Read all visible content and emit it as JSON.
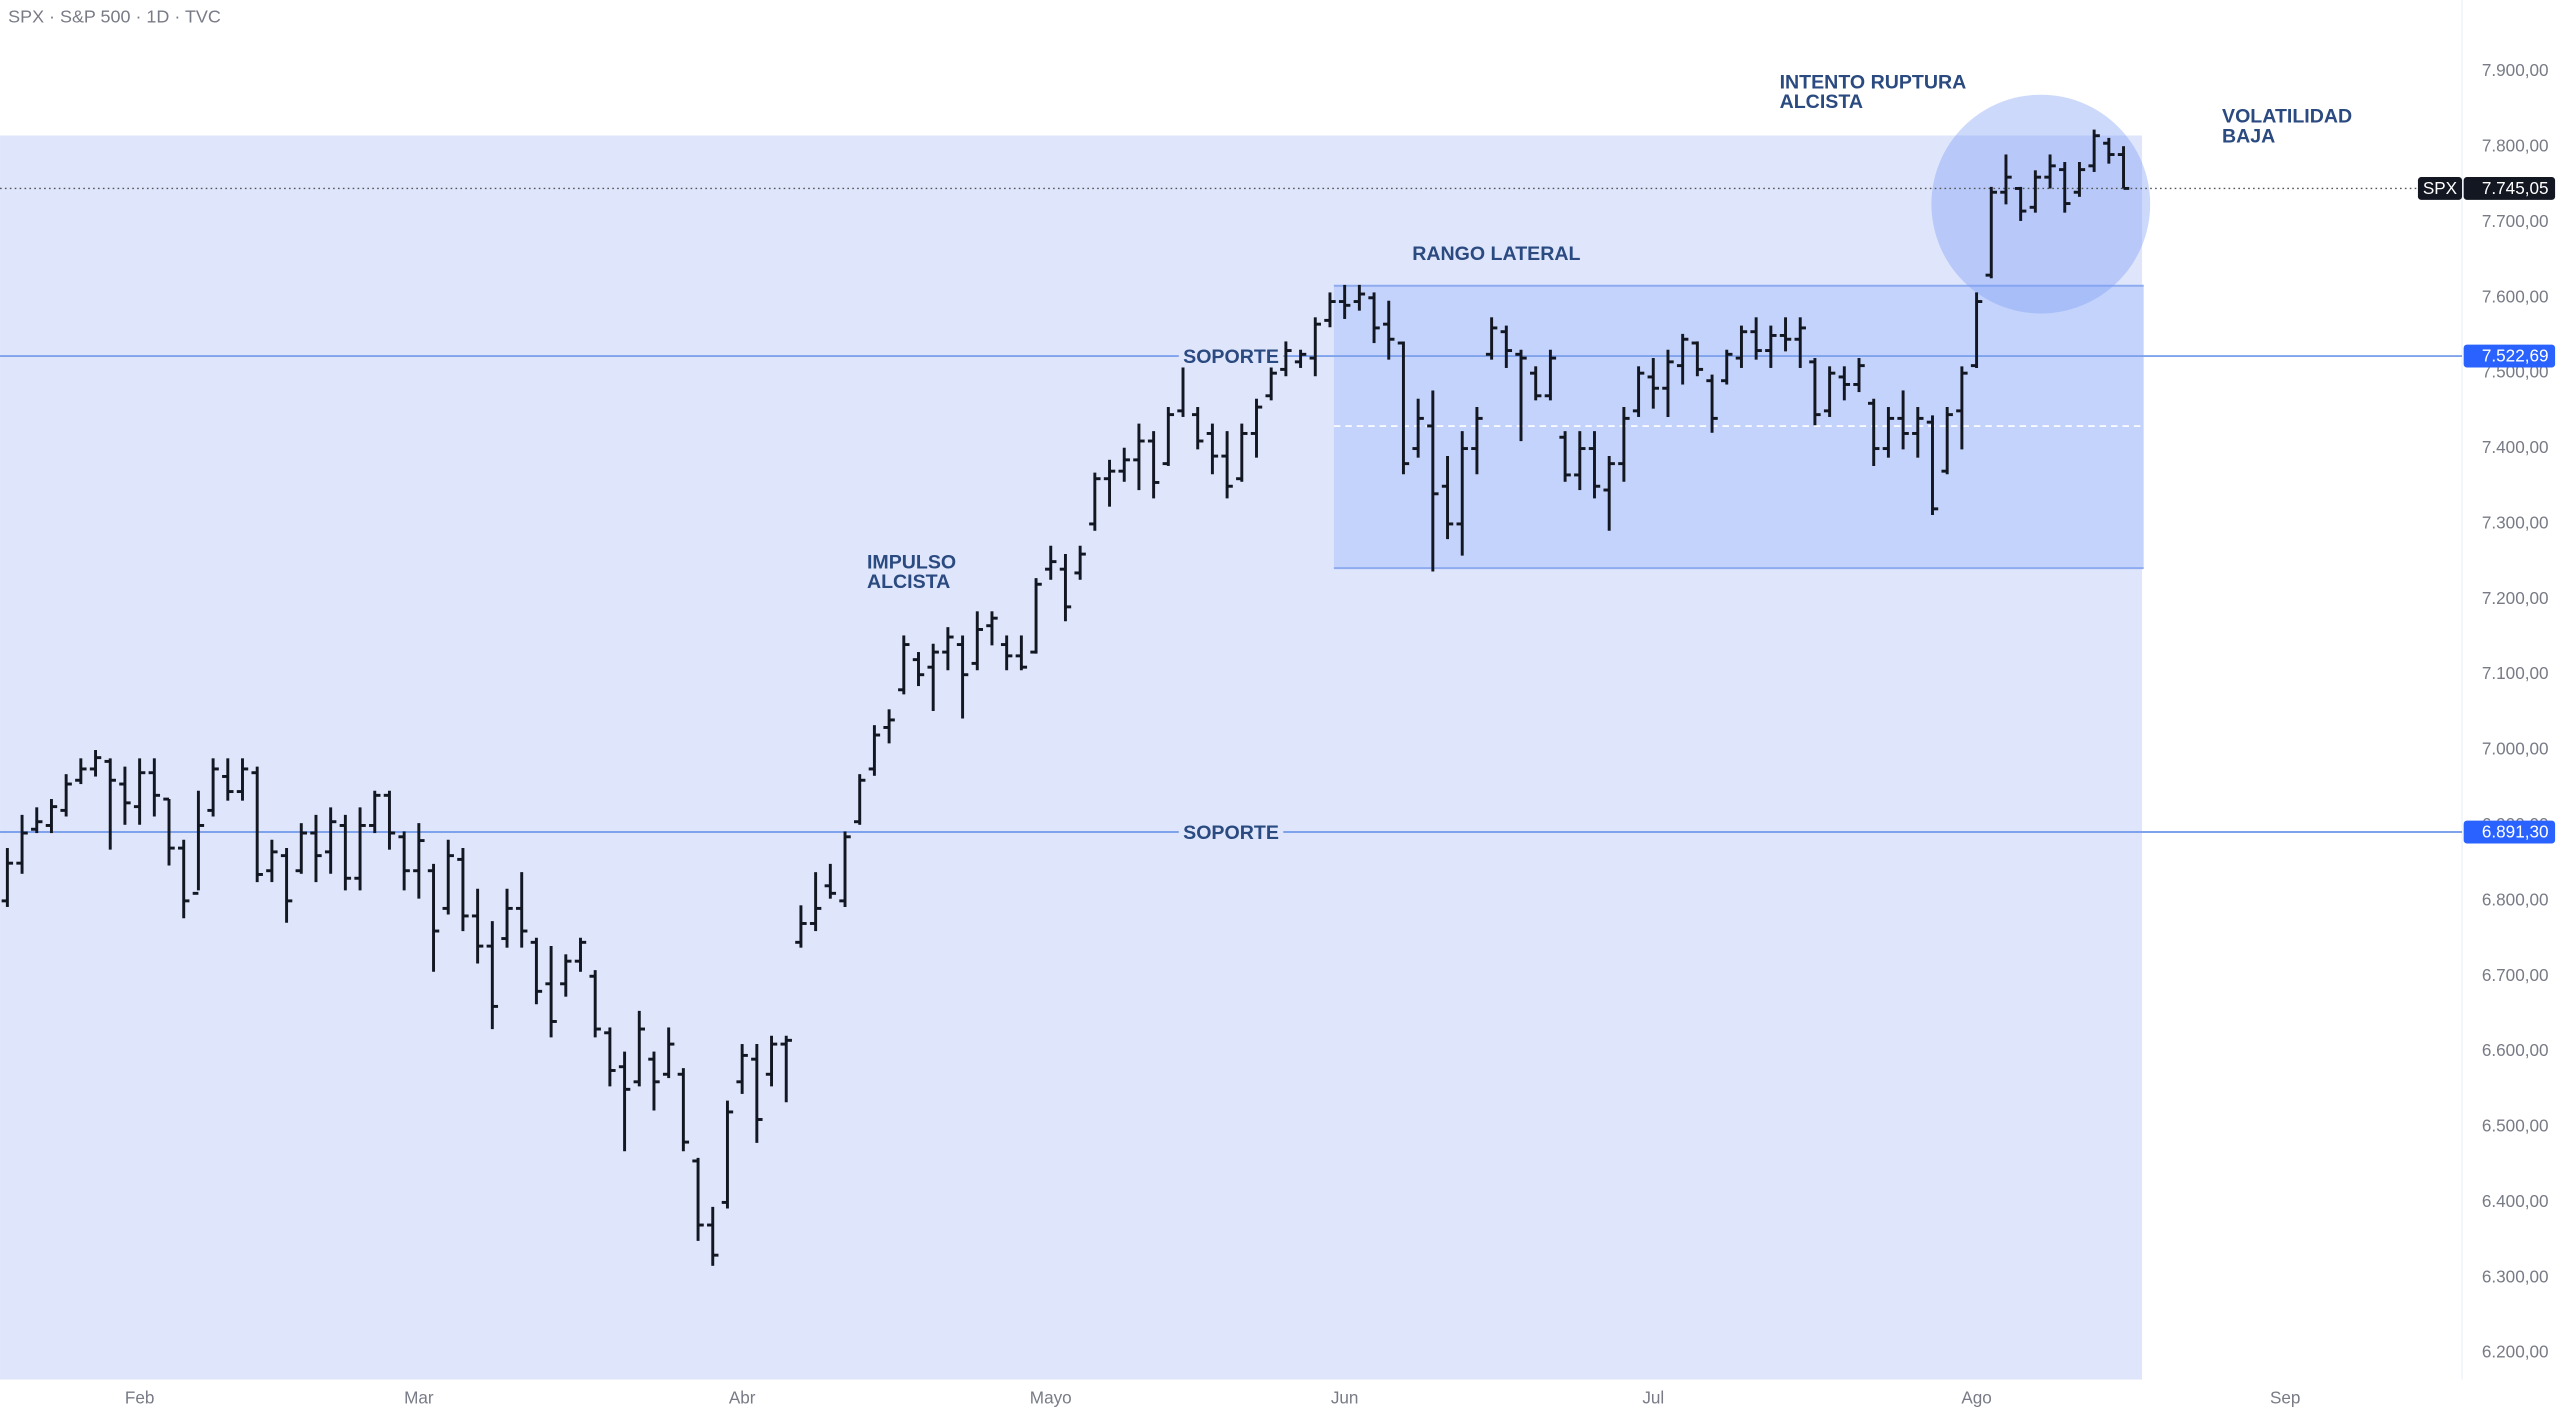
{
  "chart_data": {
    "type": "ohlc",
    "title": "SPX · S&P 500 · 1D · TVC",
    "symbol": "SPX",
    "bar_color": "#131722",
    "line_color": "#7fa2ec",
    "tag_color": "#2962ff",
    "xlim": [
      -0.5,
      166.7
    ],
    "xticks": [
      {
        "value": 9,
        "label": "Feb"
      },
      {
        "value": 28,
        "label": "Mar"
      },
      {
        "value": 50,
        "label": "Abr"
      },
      {
        "value": 71,
        "label": "Mayo"
      },
      {
        "value": 91,
        "label": "Jun"
      },
      {
        "value": 112,
        "label": "Jul"
      },
      {
        "value": 134,
        "label": "Ago"
      },
      {
        "value": 155,
        "label": "Sep"
      }
    ],
    "ylim": [
      6165,
      7995
    ],
    "yticks": [
      {
        "value": 6200,
        "label": "6.200,00"
      },
      {
        "value": 6300,
        "label": "6.300,00"
      },
      {
        "value": 6400,
        "label": "6.400,00"
      },
      {
        "value": 6500,
        "label": "6.500,00"
      },
      {
        "value": 6600,
        "label": "6.600,00"
      },
      {
        "value": 6700,
        "label": "6.700,00"
      },
      {
        "value": 6800,
        "label": "6.800,00"
      },
      {
        "value": 6900,
        "label": "6.900,00"
      },
      {
        "value": 7000,
        "label": "7.000,00"
      },
      {
        "value": 7100,
        "label": "7.100,00"
      },
      {
        "value": 7200,
        "label": "7.200,00"
      },
      {
        "value": 7300,
        "label": "7.300,00"
      },
      {
        "value": 7400,
        "label": "7.400,00"
      },
      {
        "value": 7500,
        "label": "7.500,00"
      },
      {
        "value": 7600,
        "label": "7.600,00"
      },
      {
        "value": 7700,
        "label": "7.700,00"
      },
      {
        "value": 7800,
        "label": "7.800,00"
      },
      {
        "value": 7900,
        "label": "7.900,00"
      }
    ],
    "open": [
      6800,
      6850,
      6895,
      6900,
      6920,
      6960,
      6975,
      6985,
      6955,
      6925,
      6970,
      6935,
      6870,
      6810,
      6920,
      6965,
      6945,
      6970,
      6840,
      6860,
      6840,
      6890,
      6865,
      6900,
      6830,
      6900,
      6940,
      6885,
      6840,
      6840,
      6790,
      6855,
      6780,
      6740,
      6750,
      6790,
      6745,
      6690,
      6690,
      6720,
      6700,
      6625,
      6580,
      6560,
      6590,
      6570,
      6570,
      6455,
      6370,
      6400,
      6560,
      6590,
      6570,
      6610,
      6745,
      6770,
      6820,
      6800,
      6905,
      6975,
      7030,
      7080,
      7120,
      7110,
      7130,
      7140,
      7115,
      7165,
      7140,
      7125,
      7130,
      7240,
      7240,
      7235,
      7300,
      7360,
      7370,
      7385,
      7410,
      7380,
      7450,
      7445,
      7420,
      7390,
      7360,
      7420,
      7470,
      7505,
      7515,
      7520,
      7570,
      7595,
      7595,
      7600,
      7565,
      7540,
      7400,
      7430,
      7350,
      7300,
      7400,
      7525,
      7555,
      7525,
      7500,
      7470,
      7415,
      7365,
      7400,
      7345,
      7380,
      7450,
      7495,
      7480,
      7510,
      7540,
      7490,
      7490,
      7520,
      7555,
      7530,
      7550,
      7545,
      7515,
      7450,
      7495,
      7485,
      7460,
      7400,
      7440,
      7420,
      7435,
      7370,
      7450,
      7510,
      7630,
      7740,
      7745,
      7720,
      7760,
      7770,
      7740,
      7775,
      7805,
      7790
    ],
    "high": [
      6869,
      6913,
      6923,
      6934,
      6967,
      6988,
      6999,
      6988,
      6977,
      6988,
      6988,
      6934,
      6880,
      6945,
      6988,
      6988,
      6988,
      6977,
      6880,
      6869,
      6902,
      6913,
      6923,
      6913,
      6923,
      6945,
      6945,
      6891,
      6902,
      6848,
      6880,
      6869,
      6815,
      6772,
      6815,
      6837,
      6750,
      6739,
      6728,
      6750,
      6707,
      6631,
      6599,
      6653,
      6599,
      6631,
      6577,
      6458,
      6393,
      6534,
      6609,
      6609,
      6620,
      6620,
      6793,
      6837,
      6848,
      6891,
      6967,
      7032,
      7053,
      7151,
      7129,
      7140,
      7162,
      7151,
      7183,
      7183,
      7151,
      7151,
      7227,
      7270,
      7259,
      7270,
      7367,
      7384,
      7400,
      7432,
      7422,
      7454,
      7519,
      7454,
      7432,
      7422,
      7432,
      7465,
      7508,
      7541,
      7530,
      7573,
      7606,
      7616,
      7616,
      7606,
      7595,
      7541,
      7465,
      7476,
      7389,
      7422,
      7454,
      7573,
      7562,
      7530,
      7508,
      7530,
      7422,
      7422,
      7422,
      7389,
      7454,
      7508,
      7519,
      7530,
      7551,
      7541,
      7497,
      7530,
      7562,
      7573,
      7562,
      7573,
      7573,
      7519,
      7508,
      7508,
      7519,
      7465,
      7454,
      7476,
      7454,
      7443,
      7454,
      7508,
      7606,
      7746,
      7789,
      7746,
      7768,
      7789,
      7779,
      7779,
      7822,
      7811,
      7800
    ],
    "low": [
      6793,
      6837,
      6891,
      6891,
      6913,
      6956,
      6966,
      6869,
      6902,
      6902,
      6913,
      6848,
      6778,
      6815,
      6913,
      6934,
      6934,
      6826,
      6826,
      6772,
      6837,
      6826,
      6837,
      6815,
      6815,
      6891,
      6869,
      6815,
      6804,
      6707,
      6783,
      6761,
      6718,
      6631,
      6739,
      6739,
      6664,
      6620,
      6674,
      6707,
      6620,
      6555,
      6469,
      6555,
      6523,
      6566,
      6469,
      6350,
      6317,
      6393,
      6545,
      6480,
      6555,
      6534,
      6739,
      6761,
      6804,
      6793,
      6902,
      6967,
      7010,
      7075,
      7086,
      7053,
      7107,
      7043,
      7107,
      7140,
      7107,
      7107,
      7129,
      7227,
      7172,
      7227,
      7292,
      7324,
      7357,
      7346,
      7335,
      7378,
      7443,
      7400,
      7367,
      7335,
      7357,
      7389,
      7465,
      7497,
      7508,
      7497,
      7562,
      7573,
      7584,
      7541,
      7519,
      7367,
      7389,
      7238,
      7281,
      7259,
      7367,
      7519,
      7508,
      7411,
      7465,
      7465,
      7357,
      7346,
      7335,
      7292,
      7357,
      7443,
      7454,
      7443,
      7486,
      7497,
      7422,
      7486,
      7508,
      7519,
      7508,
      7530,
      7508,
      7432,
      7443,
      7465,
      7476,
      7378,
      7389,
      7400,
      7389,
      7313,
      7367,
      7400,
      7508,
      7627,
      7725,
      7703,
      7714,
      7746,
      7714,
      7735,
      7768,
      7779,
      7746
    ],
    "close": [
      6850,
      6890,
      6905,
      6925,
      6955,
      6975,
      6990,
      6960,
      6930,
      6970,
      6940,
      6870,
      6800,
      6900,
      6975,
      6945,
      6975,
      6835,
      6865,
      6800,
      6890,
      6860,
      6905,
      6830,
      6900,
      6940,
      6890,
      6840,
      6880,
      6760,
      6860,
      6780,
      6740,
      6660,
      6790,
      6760,
      6680,
      6640,
      6720,
      6745,
      6630,
      6575,
      6550,
      6630,
      6560,
      6610,
      6480,
      6370,
      6330,
      6520,
      6595,
      6510,
      6610,
      6615,
      6770,
      6790,
      6810,
      6885,
      6960,
      7020,
      7040,
      7140,
      7100,
      7130,
      7150,
      7100,
      7160,
      7175,
      7125,
      7110,
      7220,
      7250,
      7190,
      7260,
      7360,
      7370,
      7385,
      7410,
      7355,
      7445,
      7510,
      7410,
      7390,
      7350,
      7420,
      7455,
      7500,
      7530,
      7525,
      7565,
      7595,
      7590,
      7605,
      7560,
      7545,
      7380,
      7440,
      7340,
      7300,
      7400,
      7440,
      7560,
      7530,
      7520,
      7470,
      7520,
      7365,
      7400,
      7350,
      7380,
      7440,
      7500,
      7480,
      7515,
      7545,
      7505,
      7440,
      7525,
      7555,
      7530,
      7550,
      7545,
      7560,
      7445,
      7500,
      7485,
      7510,
      7400,
      7440,
      7420,
      7440,
      7320,
      7445,
      7500,
      7595,
      7740,
      7760,
      7715,
      7760,
      7775,
      7725,
      7770,
      7815,
      7790,
      7745.05
    ],
    "last_price": {
      "value": 7745.05,
      "label": "7.745,05"
    },
    "hlines": [
      {
        "value": 7522.69,
        "label": "7.522,69",
        "text": "SOPORTE"
      },
      {
        "value": 6891.3,
        "label": "6.891,30",
        "text": "SOPORTE"
      }
    ],
    "annotations": [
      {
        "lines": [
          "INTENTO RUPTURA",
          "ALCISTA"
        ]
      },
      {
        "lines": [
          "VOLATILIDAD",
          "BAJA"
        ]
      },
      {
        "lines": [
          "RANGO LATERAL"
        ]
      },
      {
        "lines": [
          "IMPULSO",
          "ALCISTA"
        ]
      }
    ]
  }
}
